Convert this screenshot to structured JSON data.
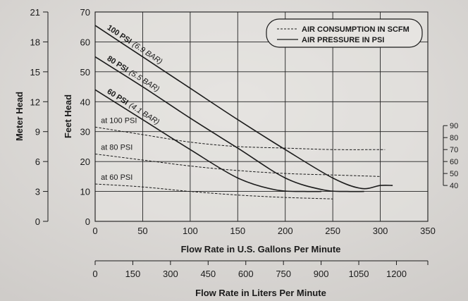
{
  "chart_data": {
    "type": "line",
    "xlabel": "Flow Rate in U.S. Gallons Per Minute",
    "ylabel": "Feet Head",
    "xlim": [
      0,
      350
    ],
    "ylim": [
      0,
      70
    ],
    "x_ticks": [
      "0",
      "50",
      "100",
      "150",
      "200",
      "250",
      "300",
      "350"
    ],
    "y_ticks": [
      "0",
      "10",
      "20",
      "30",
      "40",
      "50",
      "60",
      "70"
    ],
    "grid": true,
    "legend": {
      "placement": "top-right",
      "entries": [
        {
          "label": "AIR CONSUMPTION IN SCFM",
          "style": "dashed"
        },
        {
          "label": "AIR PRESSURE IN PSI",
          "style": "solid"
        }
      ]
    },
    "pressure_curves": [
      {
        "label_bold": "100 PSI",
        "label_italic": "(6.9 BAR)",
        "x": [
          0,
          50,
          100,
          150,
          200,
          250,
          280,
          300,
          313
        ],
        "y": [
          65.5,
          55,
          44.5,
          34,
          24,
          14.5,
          11,
          12,
          12
        ]
      },
      {
        "label_bold": "80 PSI",
        "label_italic": "(5.5 BAR)",
        "x": [
          0,
          50,
          100,
          150,
          200,
          240,
          265,
          283
        ],
        "y": [
          55,
          45,
          34.5,
          24.5,
          14.5,
          10.5,
          10,
          10
        ]
      },
      {
        "label_bold": "60 PSI",
        "label_italic": "(4.1 BAR)",
        "x": [
          0,
          50,
          100,
          150,
          190,
          220,
          238
        ],
        "y": [
          44,
          34,
          24,
          14.5,
          10.5,
          10,
          10
        ]
      }
    ],
    "air_consumption_curves": [
      {
        "label": "at 100 PSI",
        "x": [
          0,
          50,
          100,
          150,
          200,
          250,
          305
        ],
        "y": [
          31.5,
          29,
          26.5,
          25,
          24.5,
          24,
          24
        ]
      },
      {
        "label": "at 80 PSI",
        "x": [
          0,
          50,
          100,
          150,
          200,
          250,
          300
        ],
        "y": [
          22.5,
          20.5,
          18.5,
          17,
          16,
          15.5,
          15
        ]
      },
      {
        "label": "at 60 PSI",
        "x": [
          0,
          50,
          100,
          150,
          200,
          250
        ],
        "y": [
          12.5,
          11.5,
          10,
          8.8,
          8,
          7.5
        ]
      }
    ],
    "left_axis": {
      "label": "Meter Head",
      "ticks": [
        "0",
        "3",
        "6",
        "9",
        "12",
        "15",
        "18",
        "21"
      ],
      "range": [
        0,
        21
      ]
    },
    "right_axis": {
      "ticks": [
        "40",
        "50",
        "60",
        "70",
        "80",
        "90"
      ],
      "range": [
        40,
        90
      ],
      "feet_equivalent": [
        12,
        32
      ]
    },
    "bottom_axis": {
      "label": "Flow Rate in Liters Per Minute",
      "ticks": [
        "0",
        "150",
        "300",
        "450",
        "600",
        "750",
        "900",
        "1050",
        "1200"
      ],
      "range": [
        0,
        1325
      ]
    }
  },
  "colors": {
    "background": "#dcd9d6",
    "plot_bg": "#e4e2df",
    "ink": "#1b1b1b",
    "grid": "#222222"
  }
}
